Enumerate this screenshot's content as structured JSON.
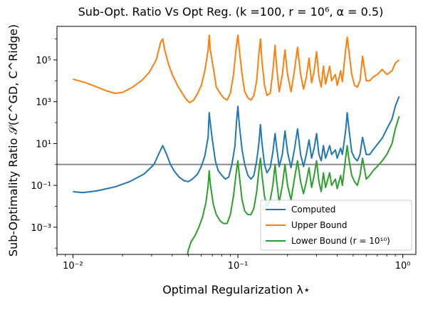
{
  "chart_data": {
    "type": "line",
    "title": "Sub-Opt. Ratio Vs Opt Reg. (k =100, r = 10⁶, α = 0.5)",
    "xlabel": "Optimal Regularization λ⋆",
    "ylabel": "Sub-Optimality Ratio 𝒮(C^GD, C^Ridge)",
    "xscale": "log",
    "yscale": "log",
    "xlim": [
      0.008,
      1.2
    ],
    "ylim": [
      5e-05,
      4000000
    ],
    "xticks": [
      {
        "value": 0.01,
        "label": "10⁻²"
      },
      {
        "value": 0.1,
        "label": "10⁻¹"
      },
      {
        "value": 1,
        "label": "10⁰"
      }
    ],
    "yticks": [
      {
        "value": 0.001,
        "label": "10⁻³"
      },
      {
        "value": 0.1,
        "label": "10⁻¹"
      },
      {
        "value": 10,
        "label": "10¹"
      },
      {
        "value": 1000,
        "label": "10³"
      },
      {
        "value": 100000,
        "label": "10⁵"
      }
    ],
    "hline": {
      "y": 1,
      "color": "#8c8c8c"
    },
    "grid": false,
    "legend_position": "lower-right",
    "colors": {
      "computed": "#1f77b4",
      "upper": "#ff7f0e",
      "lower": "#2ca02c"
    },
    "series": [
      {
        "name": "Computed",
        "color": "#1f77b4",
        "points": [
          [
            0.01,
            0.05
          ],
          [
            0.0115,
            0.045
          ],
          [
            0.014,
            0.055
          ],
          [
            0.018,
            0.085
          ],
          [
            0.022,
            0.15
          ],
          [
            0.027,
            0.35
          ],
          [
            0.031,
            1.0
          ],
          [
            0.033,
            3.0
          ],
          [
            0.035,
            8.0
          ],
          [
            0.037,
            3.0
          ],
          [
            0.039,
            1.0
          ],
          [
            0.041,
            0.5
          ],
          [
            0.044,
            0.25
          ],
          [
            0.047,
            0.17
          ],
          [
            0.05,
            0.15
          ],
          [
            0.053,
            0.2
          ],
          [
            0.057,
            0.35
          ],
          [
            0.06,
            0.8
          ],
          [
            0.063,
            2.5
          ],
          [
            0.066,
            20
          ],
          [
            0.067,
            300
          ],
          [
            0.068,
            100
          ],
          [
            0.07,
            15
          ],
          [
            0.073,
            1.5
          ],
          [
            0.076,
            0.5
          ],
          [
            0.08,
            0.3
          ],
          [
            0.084,
            0.2
          ],
          [
            0.088,
            0.25
          ],
          [
            0.092,
            1.0
          ],
          [
            0.096,
            8
          ],
          [
            0.098,
            100
          ],
          [
            0.1,
            600
          ],
          [
            0.102,
            80
          ],
          [
            0.106,
            5
          ],
          [
            0.11,
            1.0
          ],
          [
            0.115,
            0.3
          ],
          [
            0.12,
            0.2
          ],
          [
            0.125,
            0.3
          ],
          [
            0.13,
            1.5
          ],
          [
            0.134,
            10
          ],
          [
            0.137,
            80
          ],
          [
            0.14,
            10
          ],
          [
            0.145,
            1.0
          ],
          [
            0.15,
            0.4
          ],
          [
            0.157,
            0.7
          ],
          [
            0.163,
            4
          ],
          [
            0.168,
            30
          ],
          [
            0.172,
            6
          ],
          [
            0.178,
            0.8
          ],
          [
            0.186,
            3
          ],
          [
            0.193,
            40
          ],
          [
            0.2,
            4
          ],
          [
            0.21,
            0.7
          ],
          [
            0.22,
            5
          ],
          [
            0.23,
            50
          ],
          [
            0.24,
            3
          ],
          [
            0.25,
            0.8
          ],
          [
            0.26,
            3
          ],
          [
            0.27,
            15
          ],
          [
            0.28,
            2
          ],
          [
            0.29,
            6
          ],
          [
            0.3,
            30
          ],
          [
            0.31,
            3
          ],
          [
            0.32,
            1.5
          ],
          [
            0.33,
            8
          ],
          [
            0.34,
            2
          ],
          [
            0.36,
            8
          ],
          [
            0.37,
            3
          ],
          [
            0.39,
            5
          ],
          [
            0.4,
            2
          ],
          [
            0.42,
            6
          ],
          [
            0.43,
            3
          ],
          [
            0.45,
            40
          ],
          [
            0.46,
            300
          ],
          [
            0.47,
            60
          ],
          [
            0.49,
            4
          ],
          [
            0.51,
            2
          ],
          [
            0.53,
            1.5
          ],
          [
            0.55,
            3
          ],
          [
            0.57,
            20
          ],
          [
            0.6,
            3
          ],
          [
            0.63,
            3
          ],
          [
            0.66,
            5
          ],
          [
            0.7,
            9
          ],
          [
            0.75,
            18
          ],
          [
            0.8,
            50
          ],
          [
            0.86,
            150
          ],
          [
            0.9,
            600
          ],
          [
            0.95,
            1800
          ]
        ]
      },
      {
        "name": "Upper Bound",
        "color": "#ff7f0e",
        "points": [
          [
            0.01,
            12000
          ],
          [
            0.012,
            8000
          ],
          [
            0.014,
            5000
          ],
          [
            0.016,
            3300
          ],
          [
            0.018,
            2500
          ],
          [
            0.02,
            2800
          ],
          [
            0.023,
            5000
          ],
          [
            0.026,
            10000
          ],
          [
            0.029,
            25000
          ],
          [
            0.032,
            100000
          ],
          [
            0.034,
            700000
          ],
          [
            0.035,
            1000000
          ],
          [
            0.036,
            300000
          ],
          [
            0.038,
            60000
          ],
          [
            0.04,
            20000
          ],
          [
            0.043,
            6000
          ],
          [
            0.046,
            2500
          ],
          [
            0.049,
            1200
          ],
          [
            0.051,
            900
          ],
          [
            0.054,
            1200
          ],
          [
            0.057,
            2500
          ],
          [
            0.06,
            6000
          ],
          [
            0.063,
            30000
          ],
          [
            0.066,
            300000
          ],
          [
            0.067,
            1500000
          ],
          [
            0.068,
            300000
          ],
          [
            0.071,
            40000
          ],
          [
            0.074,
            5000
          ],
          [
            0.078,
            2500
          ],
          [
            0.082,
            1500
          ],
          [
            0.086,
            1200
          ],
          [
            0.09,
            2500
          ],
          [
            0.094,
            20000
          ],
          [
            0.098,
            500000
          ],
          [
            0.1,
            1500000
          ],
          [
            0.102,
            300000
          ],
          [
            0.106,
            20000
          ],
          [
            0.11,
            3000
          ],
          [
            0.115,
            1500
          ],
          [
            0.12,
            1200
          ],
          [
            0.125,
            2000
          ],
          [
            0.13,
            10000
          ],
          [
            0.134,
            200000
          ],
          [
            0.137,
            1000000
          ],
          [
            0.14,
            80000
          ],
          [
            0.145,
            6000
          ],
          [
            0.15,
            2000
          ],
          [
            0.157,
            2500
          ],
          [
            0.163,
            30000
          ],
          [
            0.168,
            500000
          ],
          [
            0.172,
            40000
          ],
          [
            0.178,
            3000
          ],
          [
            0.186,
            20000
          ],
          [
            0.193,
            300000
          ],
          [
            0.2,
            20000
          ],
          [
            0.21,
            3000
          ],
          [
            0.22,
            30000
          ],
          [
            0.23,
            400000
          ],
          [
            0.24,
            20000
          ],
          [
            0.25,
            4000
          ],
          [
            0.26,
            15000
          ],
          [
            0.27,
            120000
          ],
          [
            0.28,
            8000
          ],
          [
            0.29,
            30000
          ],
          [
            0.3,
            250000
          ],
          [
            0.31,
            15000
          ],
          [
            0.32,
            5000
          ],
          [
            0.33,
            50000
          ],
          [
            0.34,
            7000
          ],
          [
            0.36,
            50000
          ],
          [
            0.37,
            10000
          ],
          [
            0.39,
            20000
          ],
          [
            0.4,
            6000
          ],
          [
            0.42,
            30000
          ],
          [
            0.43,
            9000
          ],
          [
            0.45,
            300000
          ],
          [
            0.46,
            1200000
          ],
          [
            0.47,
            300000
          ],
          [
            0.49,
            20000
          ],
          [
            0.51,
            6000
          ],
          [
            0.53,
            5000
          ],
          [
            0.55,
            10000
          ],
          [
            0.57,
            150000
          ],
          [
            0.6,
            10000
          ],
          [
            0.63,
            10000
          ],
          [
            0.66,
            15000
          ],
          [
            0.7,
            20000
          ],
          [
            0.75,
            35000
          ],
          [
            0.8,
            20000
          ],
          [
            0.86,
            30000
          ],
          [
            0.9,
            70000
          ],
          [
            0.95,
            100000
          ]
        ]
      },
      {
        "name": "Lower Bound (r = 10¹⁰)",
        "color": "#2ca02c",
        "points": [
          [
            0.0495,
            5e-05
          ],
          [
            0.05,
            8e-05
          ],
          [
            0.052,
            0.0002
          ],
          [
            0.055,
            0.0004
          ],
          [
            0.058,
            0.001
          ],
          [
            0.061,
            0.003
          ],
          [
            0.064,
            0.015
          ],
          [
            0.066,
            0.1
          ],
          [
            0.067,
            0.5
          ],
          [
            0.068,
            0.12
          ],
          [
            0.071,
            0.012
          ],
          [
            0.074,
            0.004
          ],
          [
            0.078,
            0.002
          ],
          [
            0.082,
            0.0015
          ],
          [
            0.086,
            0.0015
          ],
          [
            0.09,
            0.004
          ],
          [
            0.094,
            0.03
          ],
          [
            0.098,
            0.5
          ],
          [
            0.1,
            1.5
          ],
          [
            0.102,
            0.3
          ],
          [
            0.106,
            0.02
          ],
          [
            0.11,
            0.006
          ],
          [
            0.115,
            0.004
          ],
          [
            0.12,
            0.004
          ],
          [
            0.125,
            0.008
          ],
          [
            0.13,
            0.05
          ],
          [
            0.134,
            0.5
          ],
          [
            0.137,
            2
          ],
          [
            0.14,
            0.3
          ],
          [
            0.145,
            0.03
          ],
          [
            0.15,
            0.01
          ],
          [
            0.157,
            0.02
          ],
          [
            0.163,
            0.1
          ],
          [
            0.168,
            1
          ],
          [
            0.172,
            0.15
          ],
          [
            0.178,
            0.015
          ],
          [
            0.186,
            0.1
          ],
          [
            0.193,
            1
          ],
          [
            0.2,
            0.1
          ],
          [
            0.21,
            0.02
          ],
          [
            0.22,
            0.2
          ],
          [
            0.23,
            1.5
          ],
          [
            0.24,
            0.15
          ],
          [
            0.25,
            0.04
          ],
          [
            0.26,
            0.15
          ],
          [
            0.27,
            0.7
          ],
          [
            0.28,
            0.08
          ],
          [
            0.29,
            0.3
          ],
          [
            0.3,
            1.5
          ],
          [
            0.31,
            0.15
          ],
          [
            0.32,
            0.05
          ],
          [
            0.33,
            0.4
          ],
          [
            0.34,
            0.08
          ],
          [
            0.36,
            0.4
          ],
          [
            0.37,
            0.1
          ],
          [
            0.39,
            0.2
          ],
          [
            0.4,
            0.07
          ],
          [
            0.42,
            0.3
          ],
          [
            0.43,
            0.1
          ],
          [
            0.45,
            2
          ],
          [
            0.46,
            8
          ],
          [
            0.47,
            2
          ],
          [
            0.49,
            0.3
          ],
          [
            0.51,
            0.15
          ],
          [
            0.53,
            0.1
          ],
          [
            0.55,
            0.3
          ],
          [
            0.57,
            2
          ],
          [
            0.6,
            0.2
          ],
          [
            0.63,
            0.3
          ],
          [
            0.66,
            0.5
          ],
          [
            0.7,
            0.8
          ],
          [
            0.75,
            1.5
          ],
          [
            0.8,
            3
          ],
          [
            0.86,
            10
          ],
          [
            0.9,
            50
          ],
          [
            0.95,
            200
          ]
        ]
      }
    ],
    "legend": [
      {
        "key": "computed",
        "label": "Computed"
      },
      {
        "key": "upper",
        "label": "Upper Bound"
      },
      {
        "key": "lower",
        "label": "Lower Bound (r = 10¹⁰)"
      }
    ]
  }
}
